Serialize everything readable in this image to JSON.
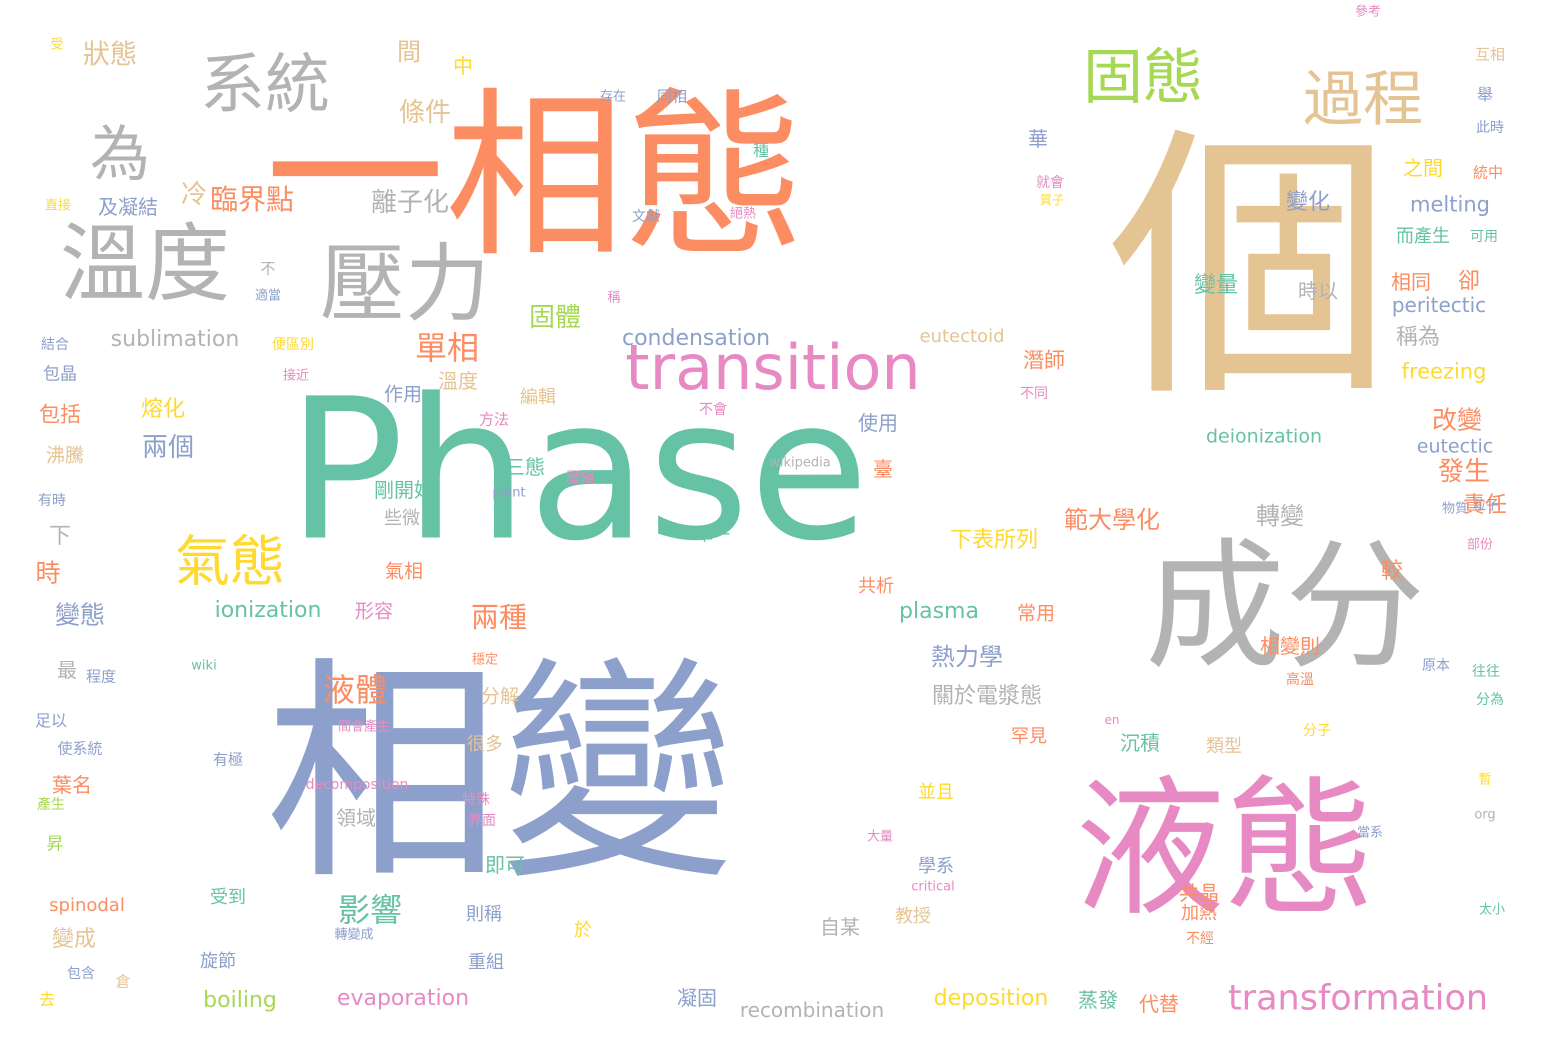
{
  "palette": {
    "green": "#66c2a5",
    "orange": "#fc8d62",
    "blue": "#8da0cb",
    "pink": "#e78ac3",
    "lime": "#a6d854",
    "yellow": "#ffd92f",
    "tan": "#e5c494",
    "gray": "#b3b3b3"
  },
  "words": [
    {
      "text": "Phase",
      "color": "green"
    },
    {
      "text": "相變",
      "color": "blue"
    },
    {
      "text": "一相態",
      "color": "orange"
    },
    {
      "text": "個",
      "color": "tan"
    },
    {
      "text": "液態",
      "color": "pink"
    },
    {
      "text": "成分",
      "color": "gray"
    },
    {
      "text": "溫度",
      "color": "gray"
    },
    {
      "text": "壓力",
      "color": "gray"
    },
    {
      "text": "系統",
      "color": "gray"
    },
    {
      "text": "為",
      "color": "gray"
    },
    {
      "text": "固態",
      "color": "lime"
    },
    {
      "text": "過程",
      "color": "tan"
    },
    {
      "text": "transition",
      "color": "pink"
    },
    {
      "text": "氣態",
      "color": "yellow"
    },
    {
      "text": "transformation",
      "color": "pink"
    },
    {
      "text": "液體",
      "color": "orange"
    },
    {
      "text": "影響",
      "color": "green"
    },
    {
      "text": "狀態",
      "color": "tan"
    },
    {
      "text": "間",
      "color": "tan"
    },
    {
      "text": "中",
      "color": "yellow"
    },
    {
      "text": "條件",
      "color": "tan"
    },
    {
      "text": "臨界點",
      "color": "orange"
    },
    {
      "text": "冷",
      "color": "tan"
    },
    {
      "text": "離子化",
      "color": "gray"
    },
    {
      "text": "單相",
      "color": "orange"
    },
    {
      "text": "固體",
      "color": "lime"
    },
    {
      "text": "condensation",
      "color": "blue"
    },
    {
      "text": "sublimation",
      "color": "gray"
    },
    {
      "text": "eutectoid",
      "color": "tan"
    },
    {
      "text": "兩個",
      "color": "blue"
    },
    {
      "text": "熔化",
      "color": "yellow"
    },
    {
      "text": "ionization",
      "color": "green"
    },
    {
      "text": "兩種",
      "color": "orange"
    },
    {
      "text": "熱力學",
      "color": "blue"
    },
    {
      "text": "plasma",
      "color": "green"
    },
    {
      "text": "變態",
      "color": "blue"
    },
    {
      "text": "時",
      "color": "orange"
    },
    {
      "text": "下",
      "color": "gray"
    },
    {
      "text": "轉變",
      "color": "gray"
    },
    {
      "text": "改變",
      "color": "orange"
    },
    {
      "text": "發生",
      "color": "orange"
    },
    {
      "text": "責任",
      "color": "orange"
    },
    {
      "text": "範大學化",
      "color": "orange"
    },
    {
      "text": "下表所列",
      "color": "yellow"
    },
    {
      "text": "關於電漿態",
      "color": "gray"
    },
    {
      "text": "相變則",
      "color": "orange"
    },
    {
      "text": "melting",
      "color": "blue"
    },
    {
      "text": "peritectic",
      "color": "blue"
    },
    {
      "text": "freezing",
      "color": "yellow"
    },
    {
      "text": "deionization",
      "color": "green"
    },
    {
      "text": "eutectic",
      "color": "blue"
    },
    {
      "text": "變化",
      "color": "blue"
    },
    {
      "text": "變量",
      "color": "green"
    },
    {
      "text": "時以",
      "color": "gray"
    },
    {
      "text": "相同",
      "color": "orange"
    },
    {
      "text": "卻",
      "color": "orange"
    },
    {
      "text": "稱為",
      "color": "gray"
    },
    {
      "text": "而產生",
      "color": "green"
    },
    {
      "text": "之間",
      "color": "yellow"
    },
    {
      "text": "華",
      "color": "blue"
    },
    {
      "text": "種",
      "color": "green"
    },
    {
      "text": "同相",
      "color": "blue"
    },
    {
      "text": "存在",
      "color": "blue"
    },
    {
      "text": "受",
      "color": "yellow"
    },
    {
      "text": "參考",
      "color": "pink"
    },
    {
      "text": "互相",
      "color": "tan"
    },
    {
      "text": "舉",
      "color": "blue"
    },
    {
      "text": "此時",
      "color": "blue"
    },
    {
      "text": "統中",
      "color": "orange"
    },
    {
      "text": "可用",
      "color": "green"
    },
    {
      "text": "就會",
      "color": "pink"
    },
    {
      "text": "質子",
      "color": "yellow"
    },
    {
      "text": "絕熱",
      "color": "pink"
    },
    {
      "text": "文獻",
      "color": "blue"
    },
    {
      "text": "及凝結",
      "color": "blue"
    },
    {
      "text": "直接",
      "color": "yellow"
    },
    {
      "text": "不",
      "color": "gray"
    },
    {
      "text": "適當",
      "color": "blue"
    },
    {
      "text": "稱",
      "color": "pink"
    },
    {
      "text": "結合",
      "color": "blue"
    },
    {
      "text": "包晶",
      "color": "blue"
    },
    {
      "text": "便區別",
      "color": "yellow"
    },
    {
      "text": "接近",
      "color": "pink"
    },
    {
      "text": "包括",
      "color": "orange"
    },
    {
      "text": "溫度",
      "color": "tan"
    },
    {
      "text": "作用",
      "color": "blue"
    },
    {
      "text": "方法",
      "color": "pink"
    },
    {
      "text": "編輯",
      "color": "tan"
    },
    {
      "text": "不會",
      "color": "pink"
    },
    {
      "text": "使用",
      "color": "blue"
    },
    {
      "text": "潛師",
      "color": "orange"
    },
    {
      "text": "不同",
      "color": "pink"
    },
    {
      "text": "沸騰",
      "color": "tan"
    },
    {
      "text": "有時",
      "color": "blue"
    },
    {
      "text": "三態",
      "color": "green"
    },
    {
      "text": "point",
      "color": "blue"
    },
    {
      "text": "壓縮",
      "color": "pink"
    },
    {
      "text": "wikipedia",
      "color": "gray"
    },
    {
      "text": "臺",
      "color": "orange"
    },
    {
      "text": "剛開始",
      "color": "green"
    },
    {
      "text": "些微",
      "color": "gray"
    },
    {
      "text": "單一",
      "color": "green"
    },
    {
      "text": "物質",
      "color": "blue"
    },
    {
      "text": "粒子",
      "color": "blue"
    },
    {
      "text": "部份",
      "color": "pink"
    },
    {
      "text": "較",
      "color": "orange"
    },
    {
      "text": "氣相",
      "color": "orange"
    },
    {
      "text": "共析",
      "color": "orange"
    },
    {
      "text": "常用",
      "color": "orange"
    },
    {
      "text": "形容",
      "color": "pink"
    },
    {
      "text": "最",
      "color": "gray"
    },
    {
      "text": "程度",
      "color": "blue"
    },
    {
      "text": "wiki",
      "color": "green"
    },
    {
      "text": "穩定",
      "color": "orange"
    },
    {
      "text": "分解",
      "color": "tan"
    },
    {
      "text": "原本",
      "color": "blue"
    },
    {
      "text": "往往",
      "color": "green"
    },
    {
      "text": "高溫",
      "color": "orange"
    },
    {
      "text": "分為",
      "color": "green"
    },
    {
      "text": "足以",
      "color": "blue"
    },
    {
      "text": "使系統",
      "color": "blue"
    },
    {
      "text": "有極",
      "color": "blue"
    },
    {
      "text": "間會產生",
      "color": "pink"
    },
    {
      "text": "en",
      "color": "pink"
    },
    {
      "text": "分子",
      "color": "yellow"
    },
    {
      "text": "罕見",
      "color": "orange"
    },
    {
      "text": "沉積",
      "color": "green"
    },
    {
      "text": "類型",
      "color": "tan"
    },
    {
      "text": "很多",
      "color": "tan"
    },
    {
      "text": "葉名",
      "color": "orange"
    },
    {
      "text": "產生",
      "color": "lime"
    },
    {
      "text": "decomposition",
      "color": "pink"
    },
    {
      "text": "領域",
      "color": "gray"
    },
    {
      "text": "特殊",
      "color": "pink"
    },
    {
      "text": "界面",
      "color": "pink"
    },
    {
      "text": "並且",
      "color": "yellow"
    },
    {
      "text": "大量",
      "color": "pink"
    },
    {
      "text": "當系",
      "color": "blue"
    },
    {
      "text": "暫",
      "color": "yellow"
    },
    {
      "text": "org",
      "color": "gray"
    },
    {
      "text": "昇",
      "color": "lime"
    },
    {
      "text": "即可",
      "color": "green"
    },
    {
      "text": "學系",
      "color": "blue"
    },
    {
      "text": "critical",
      "color": "pink"
    },
    {
      "text": "spinodal",
      "color": "orange"
    },
    {
      "text": "受到",
      "color": "green"
    },
    {
      "text": "則稱",
      "color": "blue"
    },
    {
      "text": "共晶",
      "color": "orange"
    },
    {
      "text": "太小",
      "color": "green"
    },
    {
      "text": "變成",
      "color": "tan"
    },
    {
      "text": "轉變成",
      "color": "blue"
    },
    {
      "text": "自某",
      "color": "gray"
    },
    {
      "text": "教授",
      "color": "tan"
    },
    {
      "text": "加熱",
      "color": "orange"
    },
    {
      "text": "不經",
      "color": "orange"
    },
    {
      "text": "於",
      "color": "yellow"
    },
    {
      "text": "旋節",
      "color": "blue"
    },
    {
      "text": "重組",
      "color": "blue"
    },
    {
      "text": "包含",
      "color": "blue"
    },
    {
      "text": "倉",
      "color": "tan"
    },
    {
      "text": "去",
      "color": "yellow"
    },
    {
      "text": "boiling",
      "color": "lime"
    },
    {
      "text": "evaporation",
      "color": "pink"
    },
    {
      "text": "凝固",
      "color": "blue"
    },
    {
      "text": "recombination",
      "color": "gray"
    },
    {
      "text": "deposition",
      "color": "yellow"
    },
    {
      "text": "蒸發",
      "color": "green"
    },
    {
      "text": "代替",
      "color": "orange"
    }
  ]
}
